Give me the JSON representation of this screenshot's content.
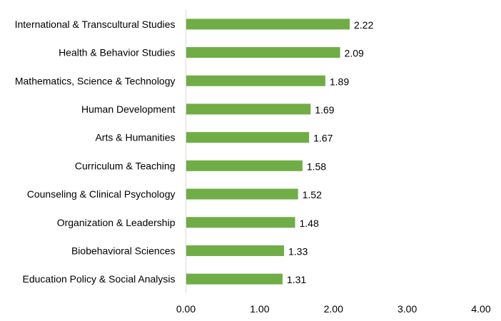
{
  "chart_data": {
    "type": "bar",
    "orientation": "horizontal",
    "categories": [
      "International & Transcultural Studies",
      "Health & Behavior Studies",
      "Mathematics, Science & Technology",
      "Human Development",
      "Arts & Humanities",
      "Curriculum & Teaching",
      "Counseling & Clinical Psychology",
      "Organization & Leadership",
      "Biobehavioral Sciences",
      "Education Policy & Social Analysis"
    ],
    "values": [
      2.22,
      2.09,
      1.89,
      1.69,
      1.67,
      1.58,
      1.52,
      1.48,
      1.33,
      1.31
    ],
    "value_labels": [
      "2.22",
      "2.09",
      "1.89",
      "1.69",
      "1.67",
      "1.58",
      "1.52",
      "1.48",
      "1.33",
      "1.31"
    ],
    "xlim": [
      0,
      4
    ],
    "x_ticks": [
      0,
      1,
      2,
      3,
      4
    ],
    "x_tick_labels": [
      "0.00",
      "1.00",
      "2.00",
      "3.00",
      "4.00"
    ],
    "bar_color": "#70AD47",
    "grid": false,
    "legend": "none",
    "title": "",
    "xlabel": "",
    "ylabel": ""
  }
}
